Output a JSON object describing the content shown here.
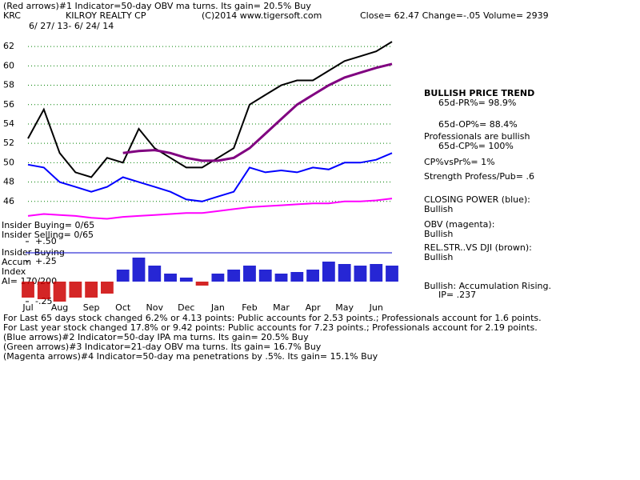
{
  "header": {
    "line1": "(Red arrows)#1 Indicator=50-day OBV ma turns. Its gain= 20.5% Buy",
    "ticker": "KRC",
    "company": "KILROY REALTY CP",
    "copyright": "(C)2014 www.tigersoft.com",
    "quote": "Close=  62.47  Change=-.05 Volume= 2939",
    "dates": "6/ 27/ 13- 6/ 24/ 14"
  },
  "left": [
    "Insider Buying= 0/65",
    "Insider Selling= 0/65",
    "Insider Buying",
    "Accum",
    "Index",
    "AI= 170/200"
  ],
  "side": [
    "BULLISH PRICE TREND",
    "65d-PR%= 98.9%",
    "65d-OP%= 88.4%",
    "Professionals are bullish",
    "65d-CP%= 100%",
    "CP%vsPr%=  1%",
    "Strength Profess/Pub= .6",
    "CLOSING POWER (blue):",
    "Bullish",
    "OBV (magenta):",
    "Bullish",
    "REL.STR..VS DJI (brown):",
    "Bullish",
    "Bullish: Accumulation Rising.",
    "IP=  .237"
  ],
  "footer": [
    "For Last 65 days stock changed  6.2% or  4.13 points:  Public accounts for  2.53 points.;  Professionals account for  1.6 points.",
    "For Last year stock changed  17.8% or  9.42 points:  Public accounts for  7.23 points.;  Professionals account for  2.19 points.",
    "(Blue arrows)#2 Indicator=50-day IPA ma turns. Its gain= 20.5% Buy",
    "(Green arrows)#3 Indicator=21-day OBV ma turns. Its gain= 16.7% Buy",
    "(Magenta arrows)#4 Indicator=50-day ma penetrations by .5%. Its gain= 15.1% Buy"
  ],
  "chart_data": [
    {
      "type": "line",
      "categories": [
        "Jul",
        null,
        "Aug",
        null,
        "Sep",
        null,
        "Oct",
        null,
        "Nov",
        null,
        "Dec",
        null,
        "Jan",
        null,
        "Feb",
        null,
        "Mar",
        null,
        "Apr",
        null,
        "May",
        null,
        "Jun",
        null
      ],
      "series": [
        {
          "color": "#000000",
          "values": [
            52.5,
            55.5,
            51,
            49,
            48.5,
            50.5,
            50,
            53.5,
            51.5,
            50.5,
            49.5,
            49.5,
            50.5,
            51.5,
            56,
            57,
            58,
            58.5,
            58.5,
            59.5,
            60.5,
            61,
            61.5,
            62.5
          ]
        },
        {
          "color": "#800080",
          "values": [
            null,
            null,
            null,
            null,
            null,
            null,
            51,
            51.2,
            51.3,
            51,
            50.5,
            50.2,
            50.2,
            50.5,
            51.5,
            53,
            54.5,
            56,
            57,
            58,
            58.8,
            59.3,
            59.8,
            60.2
          ]
        },
        {
          "color": "#0000ff",
          "values": [
            49.8,
            49.5,
            48,
            47.5,
            47,
            47.5,
            48.5,
            48,
            47.5,
            47,
            46.2,
            46,
            46.5,
            47,
            49.5,
            49,
            49.2,
            49,
            49.5,
            49.3,
            50,
            50,
            50.3,
            51
          ]
        },
        {
          "color": "#ff00ff",
          "values": [
            44.5,
            44.7,
            44.6,
            44.5,
            44.3,
            44.2,
            44.4,
            44.5,
            44.6,
            44.7,
            44.8,
            44.8,
            45,
            45.2,
            45.4,
            45.5,
            45.6,
            45.7,
            45.8,
            45.8,
            46,
            46,
            46.1,
            46.3
          ]
        }
      ],
      "ylim": [
        43.5,
        63.5
      ],
      "yticks": [
        46,
        48,
        50,
        52,
        54,
        56,
        58,
        60,
        62
      ],
      "grid": true
    },
    {
      "type": "bar",
      "values": [
        -0.2,
        -0.22,
        -0.25,
        -0.2,
        -0.2,
        -0.15,
        0.15,
        0.3,
        0.2,
        0.1,
        0.05,
        -0.05,
        0.1,
        0.15,
        0.2,
        0.15,
        0.1,
        0.12,
        0.15,
        0.25,
        0.22,
        0.2,
        0.22,
        0.2
      ],
      "colors": {
        "positive": "#0000cc",
        "negative": "#cc0000"
      },
      "ylim": [
        -0.3,
        0.55
      ],
      "yticks": [
        {
          "value": 0.5,
          "label": "+.50"
        },
        {
          "value": 0.25,
          "label": "+.25"
        },
        {
          "value": -0.25,
          "label": "-.25"
        }
      ]
    }
  ]
}
